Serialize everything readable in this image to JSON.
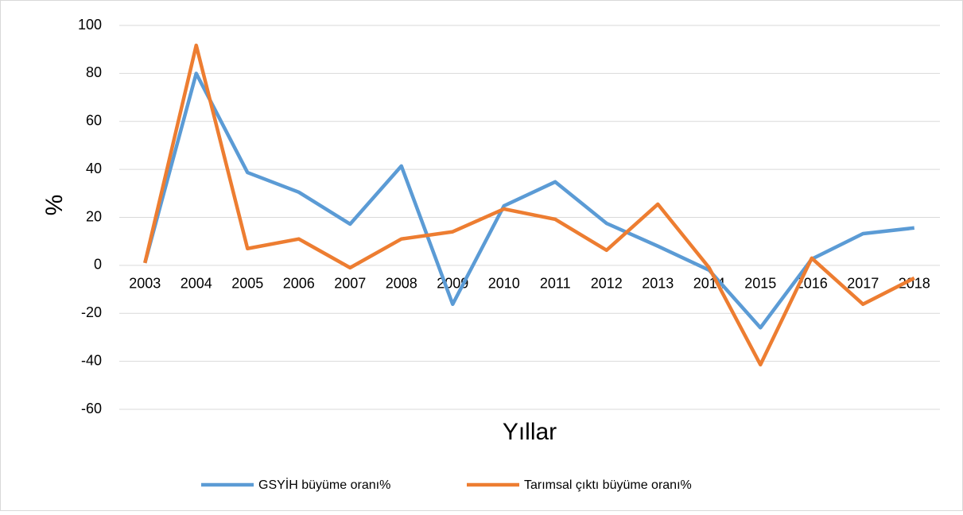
{
  "chart_data": {
    "type": "line",
    "x_label": "Yıllar",
    "y_label": "%",
    "categories": [
      "2003",
      "2004",
      "2005",
      "2006",
      "2007",
      "2008",
      "2009",
      "2010",
      "2011",
      "2012",
      "2013",
      "2014",
      "2015",
      "2016",
      "2017",
      "2018"
    ],
    "series": [
      {
        "name": "GSYİH büyüme oranı%",
        "color": "#5b9bd5",
        "values": [
          1,
          80,
          38.7,
          30.5,
          17.2,
          41.4,
          -16.2,
          24.8,
          34.8,
          17.5,
          8,
          -2,
          -26,
          2.6,
          13.2,
          15.6
        ]
      },
      {
        "name": "Tarımsal çıktı büyüme oranı%",
        "color": "#ed7d31",
        "values": [
          1,
          91.7,
          7,
          11,
          -1,
          11,
          14,
          23.5,
          19.2,
          6.3,
          25.5,
          -1,
          -41.4,
          3,
          -16.2,
          -5.3
        ]
      }
    ],
    "ylim": [
      -60,
      100
    ],
    "yticks": [
      -60,
      -40,
      -20,
      0,
      20,
      40,
      60,
      80,
      100
    ],
    "grid": true,
    "legend": "bottom"
  }
}
